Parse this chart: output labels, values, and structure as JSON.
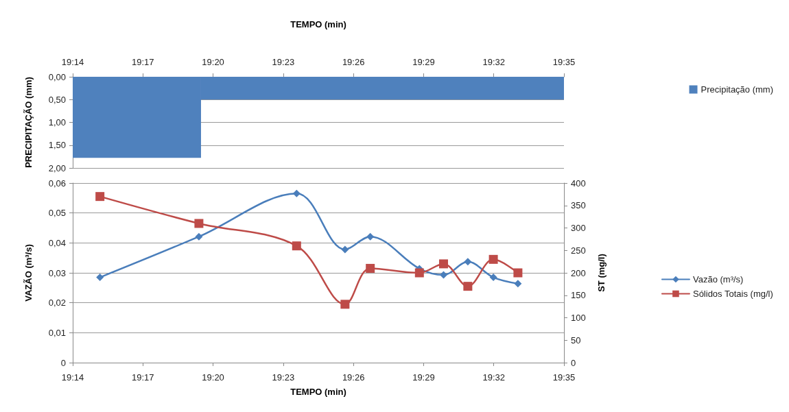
{
  "chart_data": [
    {
      "type": "histogram",
      "xlabel": "TEMPO (min)",
      "ylabel": "PRECIPITAÇÃO (mm)",
      "bins": [
        19.2333,
        19.3247,
        19.5833
      ],
      "series": [
        {
          "name": "Precipitação (mm)",
          "color": "#4f81bd",
          "values": [
            1.78,
            0.5
          ]
        }
      ],
      "xlim": [
        19.2333,
        19.5833
      ],
      "xticks": [
        {
          "value": 19.2333,
          "label": "19:14"
        },
        {
          "value": 19.2833,
          "label": "19:17"
        },
        {
          "value": 19.3333,
          "label": "19:20"
        },
        {
          "value": 19.3833,
          "label": "19:23"
        },
        {
          "value": 19.4333,
          "label": "19:26"
        },
        {
          "value": 19.4833,
          "label": "19:29"
        },
        {
          "value": 19.5333,
          "label": "19:32"
        },
        {
          "value": 19.5833,
          "label": "19:35"
        }
      ],
      "ylim": [
        2,
        0
      ],
      "yticks": [
        {
          "value": 0,
          "label": "0,00"
        },
        {
          "value": 0.5,
          "label": "0,50"
        },
        {
          "value": 1,
          "label": "1,00"
        },
        {
          "value": 1.5,
          "label": "1,50"
        },
        {
          "value": 2,
          "label": "2,00"
        }
      ],
      "grid": "y",
      "legend": "right"
    },
    {
      "type": "line",
      "xlabel": "TEMPO (min)",
      "ylabel": "VAZÃO (m³/s)",
      "y2label": "ST (mg/l)",
      "x": [
        19.2527,
        19.3232,
        19.3928,
        19.4273,
        19.4453,
        19.4803,
        19.4975,
        19.5148,
        19.533,
        19.5505
      ],
      "series": [
        {
          "name": "Vazão (m³/s)",
          "color": "#4a7ebb",
          "marker": "diamond",
          "values": [
            0.0285,
            0.0421,
            0.0565,
            0.0378,
            0.0421,
            0.0314,
            0.0293,
            0.0337,
            0.0285,
            0.0264
          ]
        },
        {
          "name": "Sólidos Totais (mg/l)",
          "color": "#be4b48",
          "marker": "square",
          "axis": "y2",
          "values": [
            370,
            310,
            260,
            130,
            210,
            200,
            220,
            170,
            230,
            200
          ]
        }
      ],
      "xlim": [
        19.2333,
        19.5833
      ],
      "xticks": [
        {
          "value": 19.2333,
          "label": "19:14"
        },
        {
          "value": 19.2833,
          "label": "19:17"
        },
        {
          "value": 19.3333,
          "label": "19:20"
        },
        {
          "value": 19.3833,
          "label": "19:23"
        },
        {
          "value": 19.4333,
          "label": "19:26"
        },
        {
          "value": 19.4833,
          "label": "19:29"
        },
        {
          "value": 19.5333,
          "label": "19:32"
        },
        {
          "value": 19.5833,
          "label": "19:35"
        }
      ],
      "ylim": [
        0,
        0.06
      ],
      "yticks": [
        0,
        {
          "value": 0.01,
          "label": "0,01"
        },
        {
          "value": 0.02,
          "label": "0,02"
        },
        {
          "value": 0.03,
          "label": "0,03"
        },
        {
          "value": 0.04,
          "label": "0,04"
        },
        {
          "value": 0.05,
          "label": "0,05"
        },
        {
          "value": 0.06,
          "label": "0,06"
        }
      ],
      "y2lim": [
        0,
        400
      ],
      "y2ticks": [
        0,
        50,
        100,
        150,
        200,
        250,
        300,
        350,
        400
      ],
      "grid": "y",
      "legend": "right"
    }
  ]
}
